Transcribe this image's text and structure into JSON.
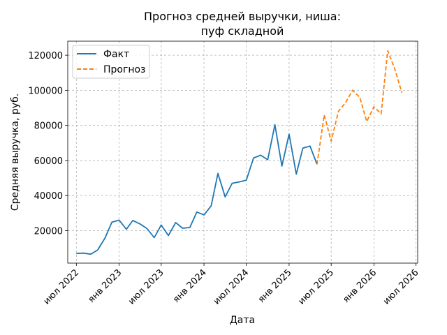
{
  "chart_data": {
    "type": "line",
    "title_lines": [
      "Прогноз средней выручки, ниша:",
      "пуф складной"
    ],
    "xlabel": "Дата",
    "ylabel": "Средняя выручка, руб.",
    "ylim": [
      1500,
      128000
    ],
    "yticks": [
      20000,
      40000,
      60000,
      80000,
      100000,
      120000
    ],
    "xlim": [
      "2022-05-25",
      "2026-07-08"
    ],
    "xticks": [
      {
        "date": "2022-07-01",
        "label": "июл 2022"
      },
      {
        "date": "2023-01-01",
        "label": "янв 2023"
      },
      {
        "date": "2023-07-01",
        "label": "июл 2023"
      },
      {
        "date": "2024-01-01",
        "label": "янв 2024"
      },
      {
        "date": "2024-07-01",
        "label": "июл 2024"
      },
      {
        "date": "2025-01-01",
        "label": "янв 2025"
      },
      {
        "date": "2025-07-01",
        "label": "июл 2025"
      },
      {
        "date": "2026-01-01",
        "label": "янв 2026"
      },
      {
        "date": "2026-07-01",
        "label": "июл 2026"
      }
    ],
    "grid": true,
    "legend_position": "top-left",
    "series": [
      {
        "name": "Факт",
        "color": "#1f77b4",
        "style": "solid",
        "points": [
          [
            "2022-07-01",
            7000
          ],
          [
            "2022-08-01",
            7200
          ],
          [
            "2022-09-01",
            6600
          ],
          [
            "2022-10-01",
            9000
          ],
          [
            "2022-11-01",
            15800
          ],
          [
            "2022-12-01",
            24800
          ],
          [
            "2023-01-01",
            26000
          ],
          [
            "2023-02-01",
            20800
          ],
          [
            "2023-03-01",
            25800
          ],
          [
            "2023-04-01",
            23800
          ],
          [
            "2023-05-01",
            21200
          ],
          [
            "2023-06-01",
            16000
          ],
          [
            "2023-07-01",
            23200
          ],
          [
            "2023-08-01",
            17200
          ],
          [
            "2023-09-01",
            24600
          ],
          [
            "2023-10-01",
            21400
          ],
          [
            "2023-11-01",
            21800
          ],
          [
            "2023-12-01",
            30600
          ],
          [
            "2024-01-01",
            29000
          ],
          [
            "2024-02-01",
            34200
          ],
          [
            "2024-03-01",
            52600
          ],
          [
            "2024-04-01",
            39200
          ],
          [
            "2024-05-01",
            47000
          ],
          [
            "2024-06-01",
            47800
          ],
          [
            "2024-07-01",
            48800
          ],
          [
            "2024-08-01",
            61400
          ],
          [
            "2024-09-01",
            63000
          ],
          [
            "2024-10-01",
            60400
          ],
          [
            "2024-11-01",
            80400
          ],
          [
            "2024-12-01",
            56800
          ],
          [
            "2025-01-01",
            75000
          ],
          [
            "2025-02-01",
            52200
          ],
          [
            "2025-03-01",
            67000
          ],
          [
            "2025-04-01",
            68200
          ],
          [
            "2025-05-01",
            57800
          ]
        ]
      },
      {
        "name": "Прогноз",
        "color": "#ff7f0e",
        "style": "dashed",
        "points": [
          [
            "2025-05-01",
            57800
          ],
          [
            "2025-06-01",
            86000
          ],
          [
            "2025-07-01",
            71000
          ],
          [
            "2025-08-01",
            88000
          ],
          [
            "2025-09-01",
            93000
          ],
          [
            "2025-10-01",
            100000
          ],
          [
            "2025-11-01",
            96000
          ],
          [
            "2025-12-01",
            82200
          ],
          [
            "2026-01-01",
            90600
          ],
          [
            "2026-02-01",
            86600
          ],
          [
            "2026-03-01",
            122600
          ],
          [
            "2026-04-01",
            112000
          ],
          [
            "2026-05-01",
            98600
          ]
        ]
      }
    ]
  }
}
